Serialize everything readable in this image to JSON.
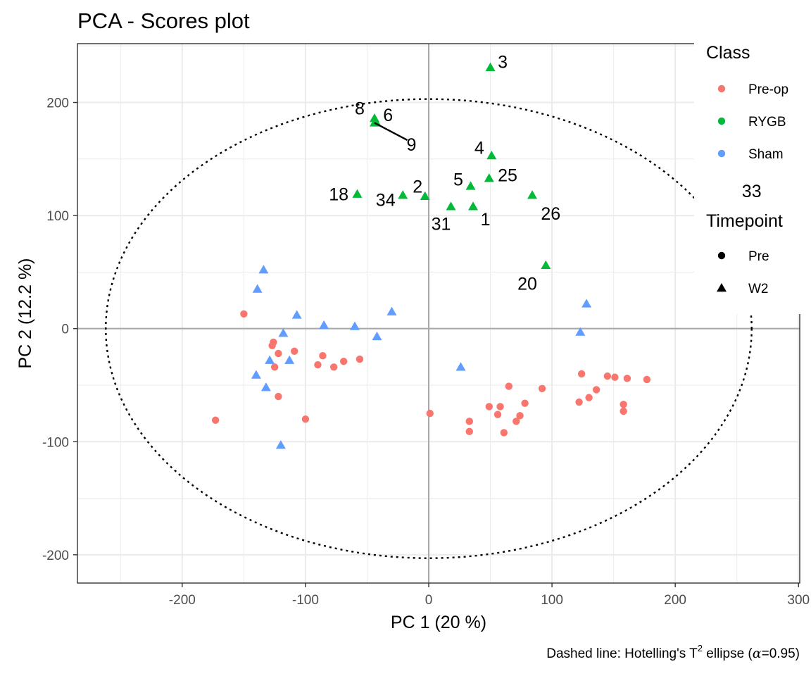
{
  "chart_data": {
    "type": "scatter",
    "title": "PCA - Scores plot",
    "xlabel": "PC 1 (20 %)",
    "ylabel": "PC 2 (12.2 %)",
    "xlim": [
      -285,
      301
    ],
    "ylim": [
      -225,
      252
    ],
    "xticks": [
      -200,
      -100,
      0,
      100,
      200,
      300
    ],
    "yticks": [
      -200,
      -100,
      0,
      100,
      200
    ],
    "grid": true,
    "caption": {
      "prefix": "Dashed line: Hotelling's T",
      "superscript": "2",
      "middle": " ellipse (",
      "alpha": "α",
      "suffix": "=0.95)"
    },
    "ellipse": {
      "center": [
        0,
        0
      ],
      "rx": 262,
      "ry": 203,
      "style": "dotted"
    },
    "legend": {
      "position": "right",
      "class_title": "Class",
      "classes": [
        {
          "name": "Pre-op",
          "color": "#F8766D"
        },
        {
          "name": "RYGB",
          "color": "#00BA38"
        },
        {
          "name": "Sham",
          "color": "#619CFF"
        }
      ],
      "timepoint_title": "Timepoint",
      "timepoints": [
        {
          "name": "Pre",
          "shape": "circle"
        },
        {
          "name": "W2",
          "shape": "triangle"
        }
      ]
    },
    "series": [
      {
        "name": "Pre-op",
        "timepoint": "Pre",
        "color": "#F8766D",
        "points": [
          [
            -150,
            13
          ],
          [
            -173,
            -81
          ],
          [
            -126,
            -12
          ],
          [
            -127,
            -15
          ],
          [
            -122,
            -22
          ],
          [
            -125,
            -34
          ],
          [
            -109,
            -20
          ],
          [
            -122,
            -60
          ],
          [
            -100,
            -80
          ],
          [
            -86,
            -24
          ],
          [
            -90,
            -32
          ],
          [
            -77,
            -34
          ],
          [
            -69,
            -29
          ],
          [
            -56,
            -27
          ],
          [
            1,
            -75
          ],
          [
            33,
            -82
          ],
          [
            33,
            -91
          ],
          [
            49,
            -69
          ],
          [
            56,
            -76
          ],
          [
            58,
            -69
          ],
          [
            65,
            -51
          ],
          [
            61,
            -92
          ],
          [
            71,
            -82
          ],
          [
            78,
            -66
          ],
          [
            74,
            -77
          ],
          [
            92,
            -53
          ],
          [
            124,
            -40
          ],
          [
            122,
            -65
          ],
          [
            130,
            -61
          ],
          [
            136,
            -54
          ],
          [
            145,
            -42
          ],
          [
            151,
            -43
          ],
          [
            161,
            -44
          ],
          [
            177,
            -45
          ],
          [
            158,
            -67
          ],
          [
            158,
            -73
          ]
        ]
      },
      {
        "name": "RYGB",
        "timepoint": "W2",
        "color": "#00BA38",
        "points": [
          [
            50,
            231,
            "3"
          ],
          [
            -44,
            186,
            "8"
          ],
          [
            -43,
            183,
            "6"
          ],
          [
            -44,
            182,
            "9"
          ],
          [
            51,
            153,
            "4"
          ],
          [
            49,
            133,
            "25"
          ],
          [
            34,
            126,
            "5"
          ],
          [
            -58,
            119,
            "18"
          ],
          [
            -21,
            118,
            "34"
          ],
          [
            -3,
            117,
            "2"
          ],
          [
            18,
            108,
            "31"
          ],
          [
            36,
            108,
            "1"
          ],
          [
            84,
            118,
            "26"
          ],
          [
            95,
            56,
            "20"
          ]
        ]
      },
      {
        "name": "Sham",
        "timepoint": "W2",
        "color": "#619CFF",
        "points": [
          [
            -134,
            52
          ],
          [
            -139,
            35
          ],
          [
            -107,
            12
          ],
          [
            -85,
            3
          ],
          [
            -60,
            2
          ],
          [
            -30,
            15
          ],
          [
            -42,
            -7
          ],
          [
            -118,
            -4
          ],
          [
            -129,
            -28
          ],
          [
            -113,
            -28
          ],
          [
            -140,
            -41
          ],
          [
            -132,
            -52
          ],
          [
            -120,
            -103
          ],
          [
            26,
            -34
          ],
          [
            128,
            22
          ],
          [
            123,
            -3
          ]
        ]
      }
    ],
    "point_labels": [
      {
        "text": "3",
        "x": 60,
        "y": 236
      },
      {
        "text": "8",
        "x": -56,
        "y": 195
      },
      {
        "text": "6",
        "x": -33,
        "y": 189
      },
      {
        "text": "9",
        "x": -14,
        "y": 163,
        "leader": [
          -44,
          182
        ]
      },
      {
        "text": "4",
        "x": 41,
        "y": 160
      },
      {
        "text": "25",
        "x": 64,
        "y": 136
      },
      {
        "text": "5",
        "x": 24,
        "y": 132
      },
      {
        "text": "18",
        "x": -73,
        "y": 119
      },
      {
        "text": "34",
        "x": -35,
        "y": 114
      },
      {
        "text": "2",
        "x": -9,
        "y": 126
      },
      {
        "text": "31",
        "x": 10,
        "y": 93
      },
      {
        "text": "1",
        "x": 46,
        "y": 97
      },
      {
        "text": "26",
        "x": 99,
        "y": 102
      },
      {
        "text": "20",
        "x": 80,
        "y": 40
      },
      {
        "text": "33",
        "x": 262,
        "y": 122
      }
    ]
  }
}
